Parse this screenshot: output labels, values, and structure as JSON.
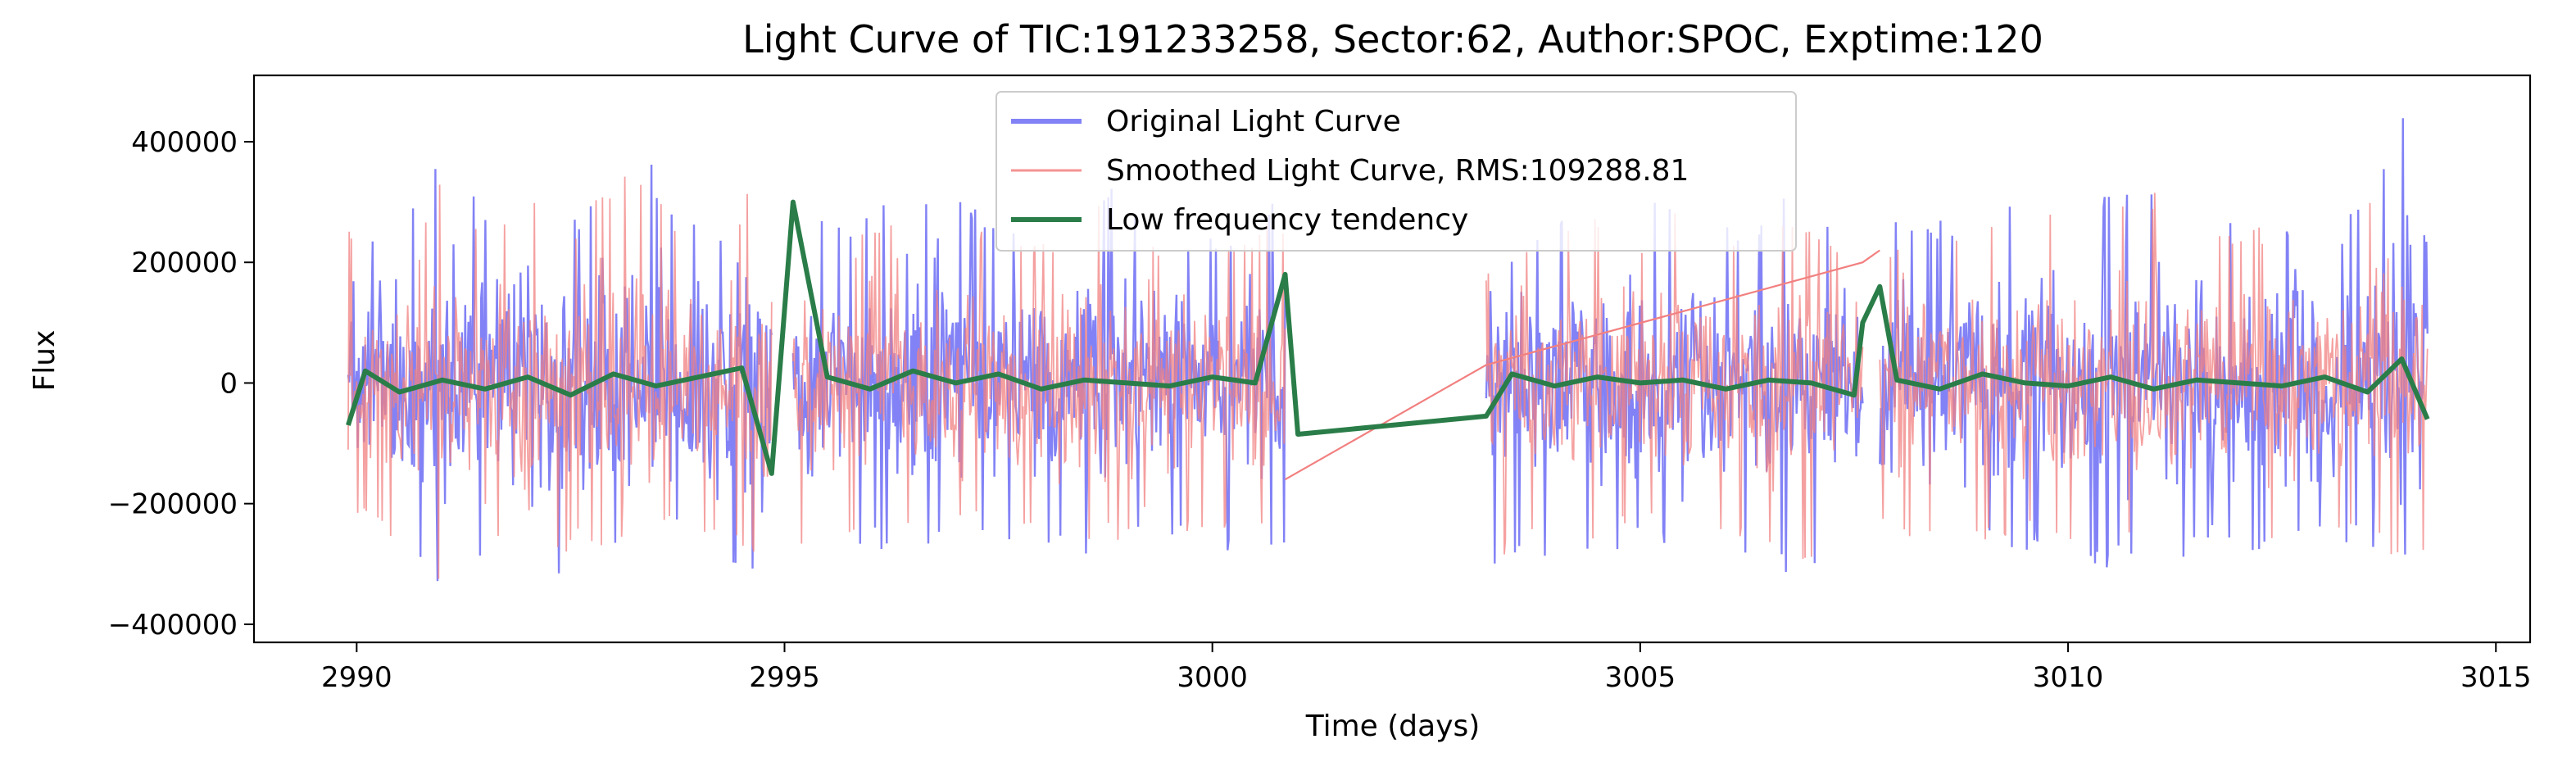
{
  "chart_data": {
    "type": "line",
    "title": "Light Curve of TIC:191233258, Sector:62, Author:SPOC, Exptime:120",
    "xlabel": "Time (days)",
    "ylabel": "Flux",
    "xlim": [
      2988.8,
      3015.4
    ],
    "ylim": [
      -430000,
      510000
    ],
    "x_ticks": [
      2990,
      2995,
      3000,
      3005,
      3010,
      3015
    ],
    "x_tick_labels": [
      "2990",
      "2995",
      "3000",
      "3005",
      "3010",
      "3015"
    ],
    "y_ticks": [
      -400000,
      -200000,
      0,
      200000,
      400000
    ],
    "y_tick_labels": [
      "−400000",
      "−200000",
      "0",
      "200000",
      "400000"
    ],
    "grid": false,
    "legend_position": "top-center",
    "rms": 109288.81,
    "segments": [
      [
        2989.9,
        2994.85
      ],
      [
        2995.1,
        3000.85
      ],
      [
        3003.2,
        3007.6
      ],
      [
        3007.8,
        3014.2
      ]
    ],
    "series": [
      {
        "name": "Original Light Curve",
        "color": "#7b7bf5",
        "envelope": {
          "x": [
            2989.9,
            2990.5,
            2991.0,
            2991.6,
            2992.0,
            2992.5,
            2993.2,
            2993.8,
            2994.2,
            2994.7,
            2995.2,
            2995.8,
            2996.5,
            2997.2,
            2998.0,
            2998.7,
            2999.3,
            3000.0,
            3000.8,
            3003.3,
            3003.8,
            3004.5,
            3005.2,
            3006.0,
            3006.8,
            3007.5,
            3008.0,
            3008.7,
            3009.5,
            3010.2,
            3011.0,
            3011.8,
            3012.5,
            3013.2,
            3013.9
          ],
          "upper": [
            280000,
            260000,
            390000,
            290000,
            360000,
            270000,
            410000,
            300000,
            240000,
            390000,
            280000,
            260000,
            350000,
            290000,
            260000,
            340000,
            270000,
            240000,
            310000,
            210000,
            270000,
            300000,
            340000,
            260000,
            320000,
            250000,
            270000,
            270000,
            310000,
            300000,
            360000,
            280000,
            290000,
            260000,
            460000
          ],
          "lower": [
            -220000,
            -300000,
            -360000,
            -290000,
            -380000,
            -300000,
            -310000,
            -250000,
            -290000,
            -320000,
            -300000,
            -270000,
            -290000,
            -260000,
            -280000,
            -300000,
            -250000,
            -280000,
            -270000,
            -320000,
            -300000,
            -290000,
            -270000,
            -290000,
            -320000,
            -300000,
            -280000,
            -290000,
            -280000,
            -300000,
            -320000,
            -270000,
            -290000,
            -260000,
            -330000
          ]
        }
      },
      {
        "name": "Smoothed Light Curve, RMS:109288.81",
        "color": "#f28080",
        "bridge": [
          [
            3000.85,
            -160000
          ],
          [
            3003.2,
            30000
          ],
          [
            3007.6,
            200000
          ],
          [
            3007.8,
            220000
          ]
        ]
      },
      {
        "name": "Low frequency tendency",
        "color": "#2a7d48",
        "x": [
          2989.9,
          2990.1,
          2990.5,
          2991.0,
          2991.5,
          2992.0,
          2992.5,
          2993.0,
          2993.5,
          2994.0,
          2994.5,
          2994.85,
          2995.1,
          2995.5,
          2996.0,
          2996.5,
          2997.0,
          2997.5,
          2998.0,
          2998.5,
          2999.0,
          2999.5,
          3000.0,
          3000.5,
          3000.85,
          3001.0,
          3003.2,
          3003.5,
          3004.0,
          3004.5,
          3005.0,
          3005.5,
          3006.0,
          3006.5,
          3007.0,
          3007.5,
          3007.6,
          3007.8,
          3008.0,
          3008.5,
          3009.0,
          3009.5,
          3010.0,
          3010.5,
          3011.0,
          3011.5,
          3012.0,
          3012.5,
          3013.0,
          3013.5,
          3013.9,
          3014.2
        ],
        "y": [
          -70000,
          20000,
          -15000,
          5000,
          -10000,
          10000,
          -20000,
          15000,
          -5000,
          10000,
          25000,
          -150000,
          300000,
          10000,
          -10000,
          20000,
          0,
          15000,
          -10000,
          5000,
          0,
          -5000,
          10000,
          0,
          180000,
          -85000,
          -55000,
          15000,
          -5000,
          10000,
          0,
          5000,
          -10000,
          5000,
          0,
          -20000,
          100000,
          160000,
          5000,
          -10000,
          15000,
          0,
          -5000,
          10000,
          -10000,
          5000,
          0,
          -5000,
          10000,
          -15000,
          40000,
          -60000
        ]
      }
    ]
  }
}
